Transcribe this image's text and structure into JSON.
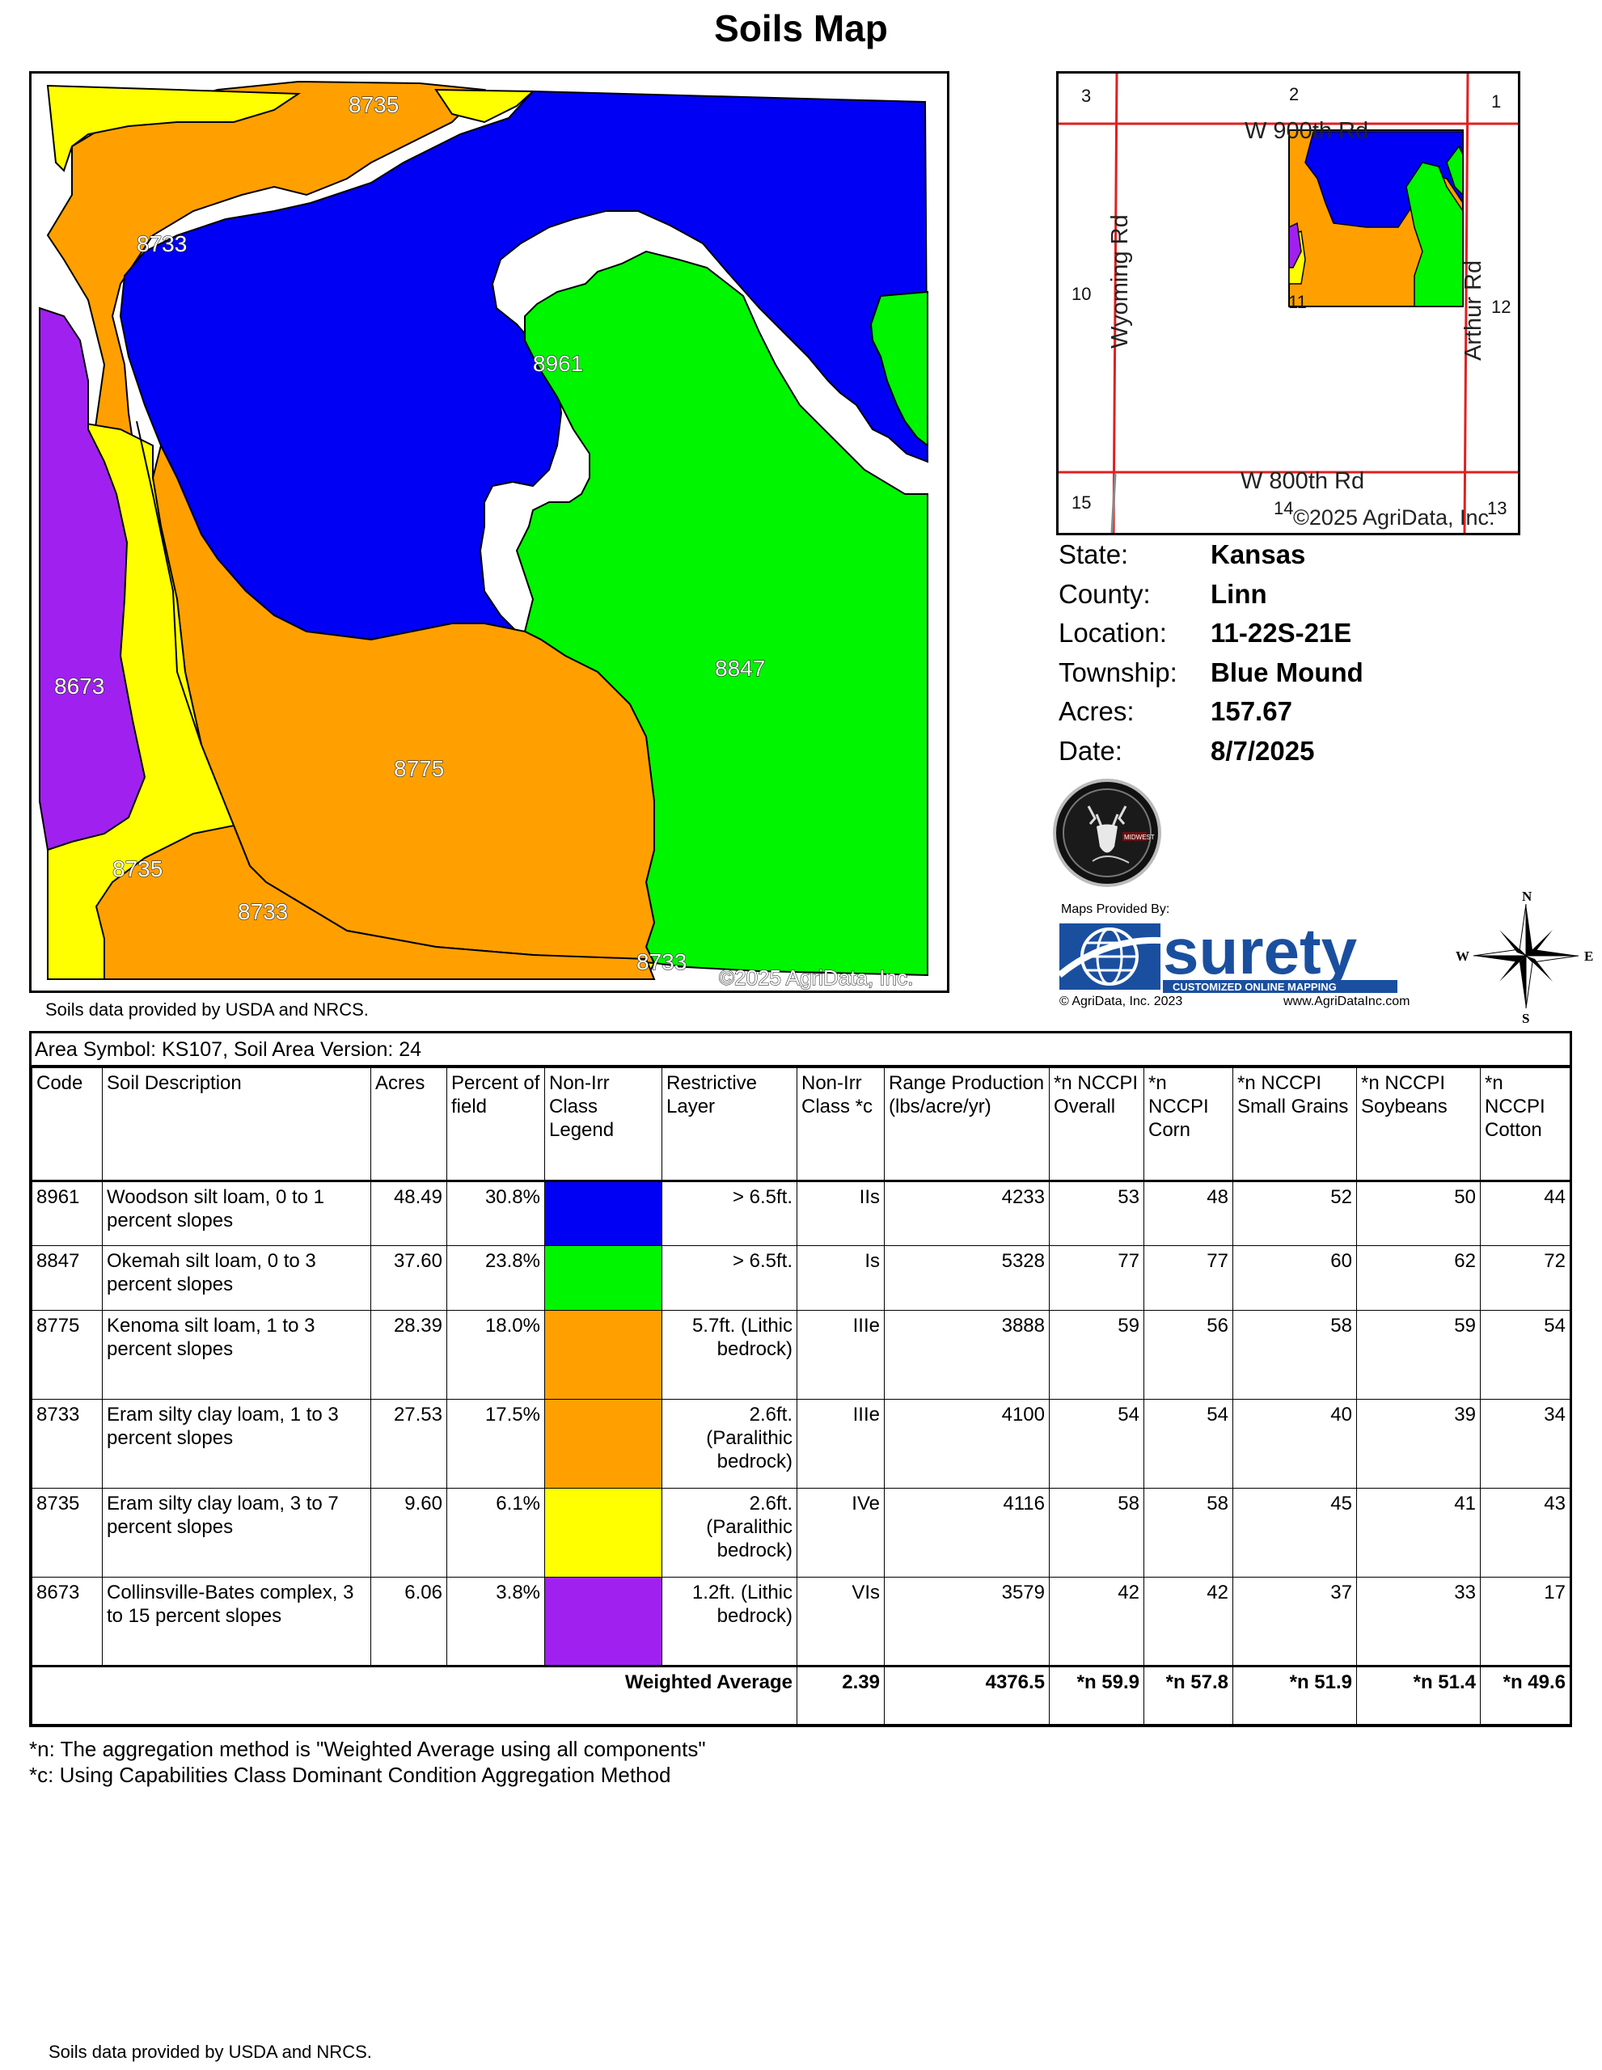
{
  "title": "Soils Map",
  "main_map": {
    "labels": {
      "l8735_top": "8735",
      "l8733_left": "8733",
      "l8961": "8961",
      "l8673": "8673",
      "l8847": "8847",
      "l8775": "8775",
      "l8735_bottom": "8735",
      "l8733_bottom": "8733",
      "l8733_corner": "8733"
    },
    "copyright": "©2025 AgriData, Inc.",
    "colors": {
      "blue": "#0000f5",
      "green": "#00f500",
      "orange": "#ffa000",
      "yellow": "#ffff00",
      "purple": "#a020f0"
    }
  },
  "source_note": "Soils data provided by USDA and NRCS.",
  "location_map": {
    "road_north": "W 900th Rd",
    "road_south": "W 800th Rd",
    "road_west": "Wyoming Rd",
    "road_east": "Arthur Rd",
    "sections": {
      "s1": "1",
      "s2": "2",
      "s3": "3",
      "s10": "10",
      "s11": "11",
      "s12": "12",
      "s13": "13",
      "s14": "14",
      "s15": "15"
    },
    "copyright": "©2025 AgriData, Inc."
  },
  "info": {
    "state_label": "State:",
    "state": "Kansas",
    "county_label": "County:",
    "county": "Linn",
    "location_label": "Location:",
    "location": "11-22S-21E",
    "township_label": "Township:",
    "township": "Blue Mound",
    "acres_label": "Acres:",
    "acres": "157.67",
    "date_label": "Date:",
    "date": "8/7/2025"
  },
  "branding": {
    "badge_text": "MIDWEST",
    "maps_provided_by": "Maps Provided By:",
    "surety_name": "surety",
    "surety_tagline": "CUSTOMIZED ONLINE MAPPING",
    "surety_copyright": "© AgriData, Inc. 2023",
    "surety_url": "www.AgriDataInc.com",
    "compass": {
      "n": "N",
      "s": "S",
      "e": "E",
      "w": "W"
    }
  },
  "table": {
    "area_symbol": "Area Symbol: KS107, Soil Area Version: 24",
    "headers": {
      "code": "Code",
      "description": "Soil Description",
      "acres": "Acres",
      "percent": "Percent of field",
      "legend": "Non-Irr Class Legend",
      "restrictive": "Restrictive Layer",
      "class": "Non-Irr Class *c",
      "range": "Range Production (lbs/acre/yr)",
      "nccpi_overall": "*n NCCPI Overall",
      "nccpi_corn": "*n NCCPI Corn",
      "nccpi_small": "*n NCCPI Small Grains",
      "nccpi_soy": "*n NCCPI Soybeans",
      "nccpi_cotton": "*n NCCPI Cotton"
    },
    "rows": [
      {
        "code": "8961",
        "description": "Woodson silt loam, 0 to 1 percent slopes",
        "acres": "48.49",
        "percent": "30.8%",
        "color": "#0000f5",
        "restrictive": "> 6.5ft.",
        "class": "IIs",
        "range": "4233",
        "overall": "53",
        "corn": "48",
        "small": "52",
        "soy": "50",
        "cotton": "44"
      },
      {
        "code": "8847",
        "description": "Okemah silt loam, 0 to 3 percent slopes",
        "acres": "37.60",
        "percent": "23.8%",
        "color": "#00f500",
        "restrictive": "> 6.5ft.",
        "class": "Is",
        "range": "5328",
        "overall": "77",
        "corn": "77",
        "small": "60",
        "soy": "62",
        "cotton": "72"
      },
      {
        "code": "8775",
        "description": "Kenoma silt loam, 1 to 3 percent slopes",
        "acres": "28.39",
        "percent": "18.0%",
        "color": "#ffa000",
        "restrictive": "5.7ft. (Lithic bedrock)",
        "class": "IIIe",
        "range": "3888",
        "overall": "59",
        "corn": "56",
        "small": "58",
        "soy": "59",
        "cotton": "54"
      },
      {
        "code": "8733",
        "description": "Eram silty clay loam, 1 to 3 percent slopes",
        "acres": "27.53",
        "percent": "17.5%",
        "color": "#ffa000",
        "restrictive": "2.6ft. (Paralithic bedrock)",
        "class": "IIIe",
        "range": "4100",
        "overall": "54",
        "corn": "54",
        "small": "40",
        "soy": "39",
        "cotton": "34"
      },
      {
        "code": "8735",
        "description": "Eram silty clay loam, 3 to 7 percent slopes",
        "acres": "9.60",
        "percent": "6.1%",
        "color": "#ffff00",
        "restrictive": "2.6ft. (Paralithic bedrock)",
        "class": "IVe",
        "range": "4116",
        "overall": "58",
        "corn": "58",
        "small": "45",
        "soy": "41",
        "cotton": "43"
      },
      {
        "code": "8673",
        "description": "Collinsville-Bates complex, 3 to 15 percent slopes",
        "acres": "6.06",
        "percent": "3.8%",
        "color": "#a020f0",
        "restrictive": "1.2ft. (Lithic bedrock)",
        "class": "VIs",
        "range": "3579",
        "overall": "42",
        "corn": "42",
        "small": "37",
        "soy": "33",
        "cotton": "17"
      }
    ],
    "weighted_average": {
      "label": "Weighted Average",
      "class": "2.39",
      "range": "4376.5",
      "overall": "*n 59.9",
      "corn": "*n 57.8",
      "small": "*n 51.9",
      "soy": "*n 51.4",
      "cotton": "*n 49.6"
    }
  },
  "footnotes": {
    "n": "*n: The aggregation method is \"Weighted Average using all components\"",
    "c": "*c: Using Capabilities Class Dominant Condition Aggregation Method"
  }
}
